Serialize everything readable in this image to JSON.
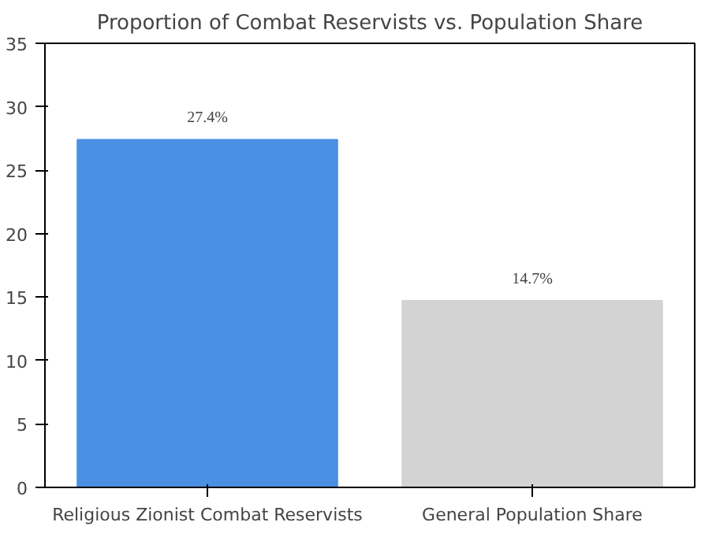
{
  "chart_data": {
    "type": "bar",
    "title": "Proportion of Combat Reservists vs. Population Share",
    "categories": [
      "Religious Zionist Combat Reservists",
      "General Population Share"
    ],
    "values": [
      27.4,
      14.7
    ],
    "colors": [
      "#4a90e2",
      "#d3d3d3"
    ],
    "value_labels": [
      "27.4%",
      "14.7%"
    ],
    "ylim": [
      0,
      35
    ],
    "yticks": [
      0,
      5,
      10,
      15,
      20,
      25,
      30,
      35
    ],
    "grid": false
  }
}
